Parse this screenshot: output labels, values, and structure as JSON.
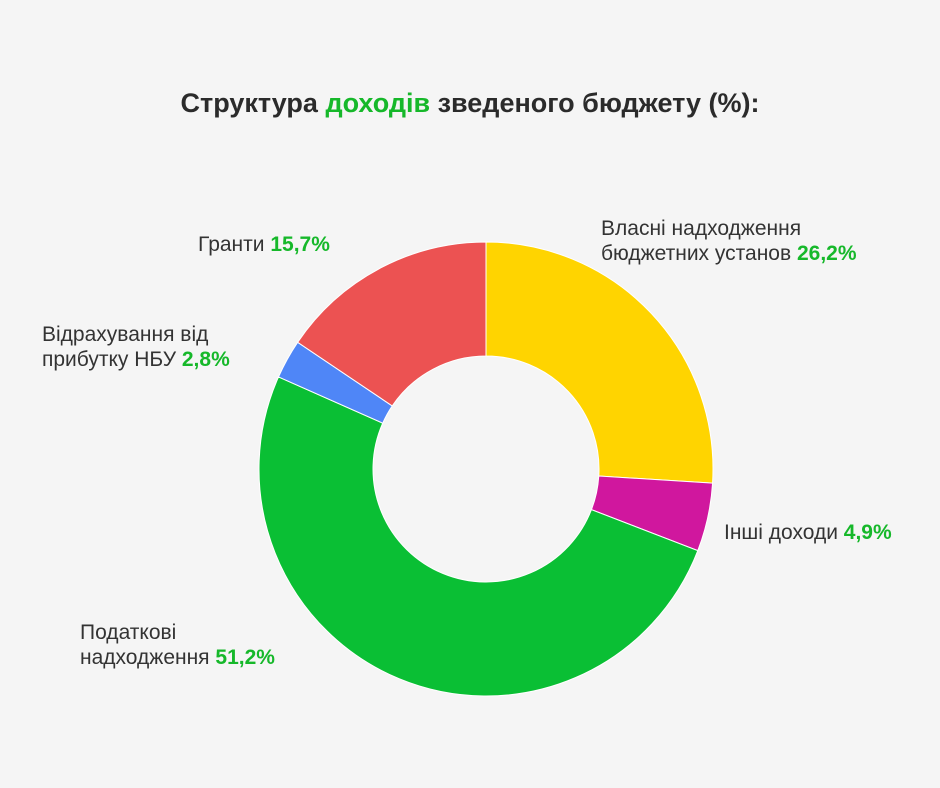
{
  "title": {
    "before": "Структура ",
    "accent": "доходів",
    "after": " зведеного бюджету (%):"
  },
  "colors": {
    "accent": "#16b82a",
    "text": "#333333",
    "background": "#f5f5f5"
  },
  "chart_data": {
    "type": "pie",
    "donut": true,
    "title": "Структура доходів зведеного бюджету (%):",
    "slices": [
      {
        "key": "vlasni",
        "label_lines": [
          "Власні надходження",
          "бюджетних установ"
        ],
        "value": 26.2,
        "value_text": "26,2%",
        "color": "#ffd400"
      },
      {
        "key": "inshi",
        "label_lines": [
          "Інші доходи"
        ],
        "value": 4.9,
        "value_text": "4,9%",
        "color": "#d0179e"
      },
      {
        "key": "podatkovi",
        "label_lines": [
          "Податкові",
          "надходження"
        ],
        "value": 51.2,
        "value_text": "51,2%",
        "color": "#0abf34"
      },
      {
        "key": "nbu",
        "label_lines": [
          "Відрахування від",
          "прибутку НБУ"
        ],
        "value": 2.8,
        "value_text": "2,8%",
        "color": "#4f86f7"
      },
      {
        "key": "granty",
        "label_lines": [
          "Гранти"
        ],
        "value": 15.7,
        "value_text": "15,7%",
        "color": "#ec5252"
      }
    ]
  }
}
